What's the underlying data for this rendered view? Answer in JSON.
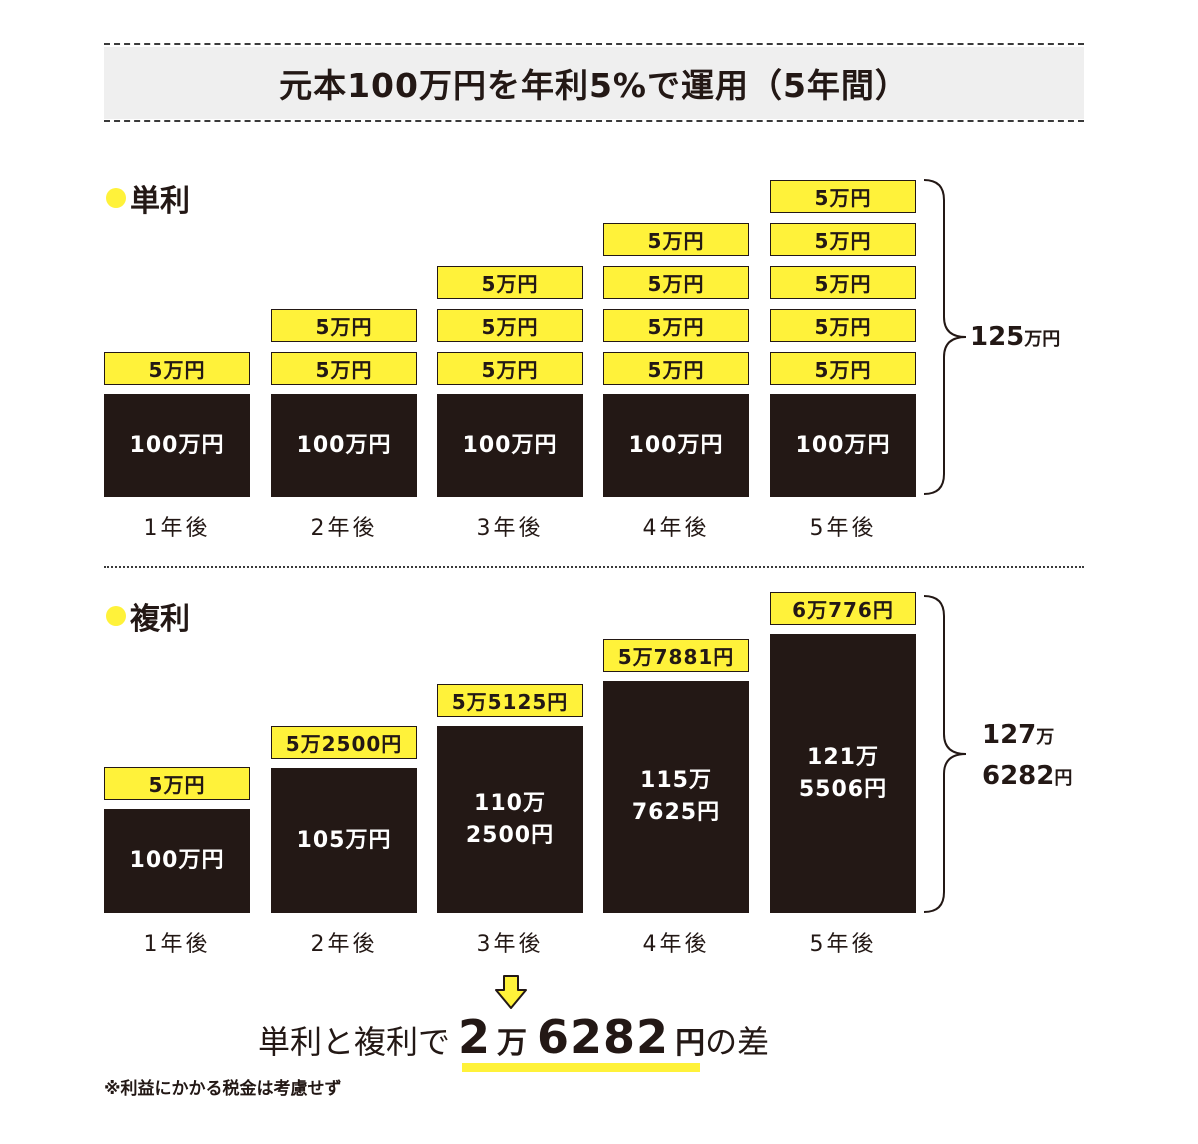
{
  "title": "元本100万円を年利5%で運用（5年間）",
  "simple": {
    "label": "単利",
    "interest_label": "5万円",
    "years": [
      {
        "year": "1年後",
        "principal": "100万円",
        "interest_count": 1
      },
      {
        "year": "2年後",
        "principal": "100万円",
        "interest_count": 2
      },
      {
        "year": "3年後",
        "principal": "100万円",
        "interest_count": 3
      },
      {
        "year": "4年後",
        "principal": "100万円",
        "interest_count": 4
      },
      {
        "year": "5年後",
        "principal": "100万円",
        "interest_count": 5
      }
    ],
    "total_number": "125",
    "total_unit": "万円"
  },
  "compound": {
    "label": "複利",
    "years": [
      {
        "year": "1年後",
        "principal_line1": "100万円",
        "principal_line2": "",
        "principal_value": 100,
        "interest": "5万円"
      },
      {
        "year": "2年後",
        "principal_line1": "105万円",
        "principal_line2": "",
        "principal_value": 105,
        "interest": "5万2500円"
      },
      {
        "year": "3年後",
        "principal_line1": "110万",
        "principal_line2": "2500円",
        "principal_value": 110.25,
        "interest": "5万5125円"
      },
      {
        "year": "4年後",
        "principal_line1": "115万",
        "principal_line2": "7625円",
        "principal_value": 115.7625,
        "interest": "5万7881円"
      },
      {
        "year": "5年後",
        "principal_line1": "121万",
        "principal_line2": "5506円",
        "principal_value": 121.5506,
        "interest": "6万776円"
      }
    ],
    "total_line1_number": "127",
    "total_line1_unit": "万",
    "total_line2_number": "6282",
    "total_line2_unit": "円"
  },
  "result": {
    "prefix": "単利と複利で",
    "num1": "2",
    "unit1": "万",
    "num2": "6282",
    "unit2": "円",
    "suffix": "の差"
  },
  "note": "※利益にかかる税金は考慮せず",
  "colors": {
    "accent": "#fff23a",
    "dark": "#231815"
  }
}
